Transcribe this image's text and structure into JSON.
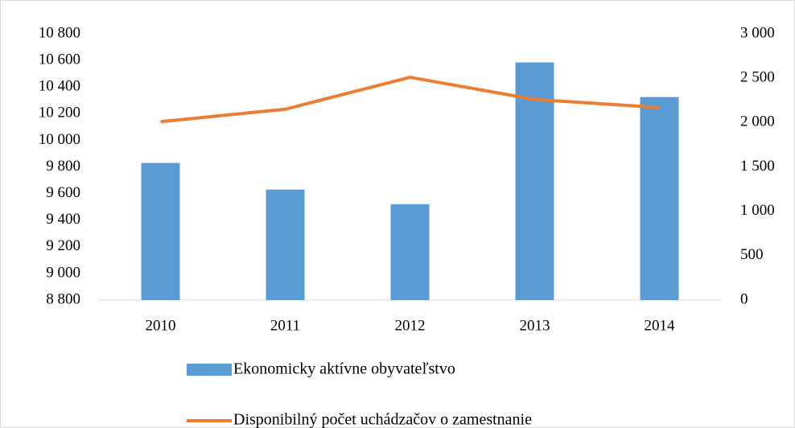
{
  "chart_data": {
    "type": "bar",
    "categories": [
      "2010",
      "2011",
      "2012",
      "2013",
      "2014"
    ],
    "series": [
      {
        "name": "Ekonomicky aktívne obyvateľstvo",
        "type": "bar",
        "color": "#5b9bd5",
        "values": [
          9830,
          9630,
          9520,
          10585,
          10325
        ]
      },
      {
        "name": "Disponibilný počet uchádzačov o zamestnanie",
        "type": "line",
        "axis": "y2",
        "color": "#ed7d31",
        "values": [
          2010,
          2150,
          2510,
          2260,
          2170
        ]
      }
    ],
    "ylim": [
      8800,
      10800
    ],
    "yticks": [
      {
        "value": 8800,
        "label": "8 800"
      },
      {
        "value": 9000,
        "label": "9 000"
      },
      {
        "value": 9200,
        "label": "9 200"
      },
      {
        "value": 9400,
        "label": "9 400"
      },
      {
        "value": 9600,
        "label": "9 600"
      },
      {
        "value": 9800,
        "label": "9 800"
      },
      {
        "value": 10000,
        "label": "10 000"
      },
      {
        "value": 10200,
        "label": "10 200"
      },
      {
        "value": 10400,
        "label": "10 400"
      },
      {
        "value": 10600,
        "label": "10 600"
      },
      {
        "value": 10800,
        "label": "10 800"
      }
    ],
    "y2lim": [
      0,
      3000
    ],
    "y2ticks": [
      0,
      500,
      {
        "value": 1000,
        "label": "1 000"
      },
      {
        "value": 1500,
        "label": "1 500"
      },
      {
        "value": 2000,
        "label": "2 000"
      },
      {
        "value": 2500,
        "label": "2 500"
      },
      {
        "value": 3000,
        "label": "3 000"
      }
    ],
    "grid": false,
    "legend": "bottom"
  }
}
